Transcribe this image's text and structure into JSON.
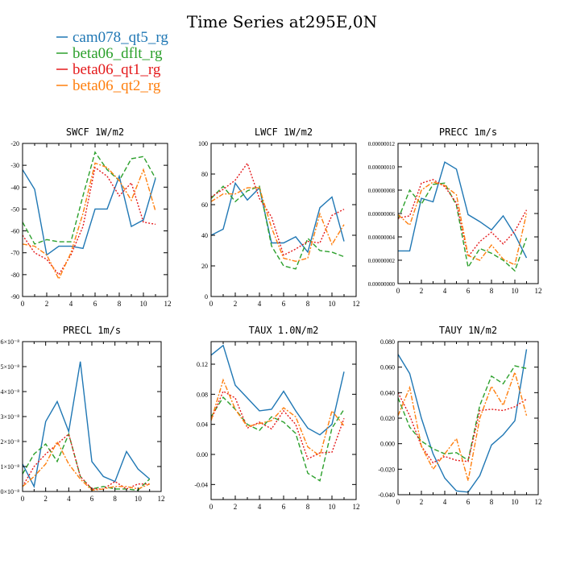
{
  "figure": {
    "title": "Time Series at295E,0N"
  },
  "legend": [
    {
      "label": "cam078_qt5_rg",
      "color": "#1f77b4",
      "dash": "solid"
    },
    {
      "label": "beta06_dflt_rg",
      "color": "#2ca02c",
      "dash": "dash"
    },
    {
      "label": "beta06_qt1_rg",
      "color": "#e41a1c",
      "dash": "dot"
    },
    {
      "label": "beta06_qt2_rg",
      "color": "#ff7f0e",
      "dash": "dashdot"
    }
  ],
  "chart_data": [
    {
      "type": "line",
      "title": "SWCF   1W/m2",
      "xlabel": "",
      "ylabel": "",
      "xlim": [
        0,
        12
      ],
      "ylim": [
        -90,
        -20
      ],
      "xticks": [
        "0",
        "2",
        "4",
        "6",
        "8",
        "10",
        "12"
      ],
      "yticks": [
        "-90",
        "-80",
        "-70",
        "-60",
        "-50",
        "-40",
        "-30",
        "-20"
      ],
      "yticks_values": [
        -90,
        -80,
        -70,
        -60,
        -50,
        -40,
        -30,
        -20
      ],
      "x": [
        0,
        1,
        2,
        3,
        4,
        5,
        6,
        7,
        8,
        9,
        10,
        11
      ],
      "series": [
        {
          "name": "cam078_qt5_rg",
          "values": [
            -32,
            -41,
            -71,
            -67,
            -67,
            -68,
            -50,
            -50,
            -35,
            -58,
            -55,
            -36
          ]
        },
        {
          "name": "beta06_dflt_rg",
          "values": [
            -56,
            -66,
            -64,
            -65,
            -65,
            -44,
            -24,
            -32,
            -37,
            -27,
            -26,
            -36
          ]
        },
        {
          "name": "beta06_qt1_rg",
          "values": [
            -62,
            -70,
            -73,
            -80,
            -71,
            -58,
            -31,
            -35,
            -44,
            -38,
            -56,
            -57
          ]
        },
        {
          "name": "beta06_qt2_rg",
          "values": [
            -66,
            -67,
            -71,
            -82,
            -70,
            -52,
            -29,
            -31,
            -37,
            -46,
            -32,
            -51
          ]
        }
      ]
    },
    {
      "type": "line",
      "title": "LWCF   1W/m2",
      "xlabel": "",
      "ylabel": "",
      "xlim": [
        0,
        12
      ],
      "ylim": [
        0,
        100
      ],
      "xticks": [
        "0",
        "2",
        "4",
        "6",
        "8",
        "10",
        "12"
      ],
      "yticks": [
        "0",
        "20",
        "40",
        "60",
        "80",
        "100"
      ],
      "yticks_values": [
        0,
        20,
        40,
        60,
        80,
        100
      ],
      "x": [
        0,
        1,
        2,
        3,
        4,
        5,
        6,
        7,
        8,
        9,
        10,
        11
      ],
      "series": [
        {
          "name": "cam078_qt5_rg",
          "values": [
            40,
            44,
            74,
            63,
            71,
            35,
            35,
            39,
            29,
            58,
            65,
            36
          ]
        },
        {
          "name": "beta06_dflt_rg",
          "values": [
            64,
            72,
            62,
            69,
            72,
            33,
            20,
            18,
            38,
            30,
            29,
            26
          ]
        },
        {
          "name": "beta06_qt1_rg",
          "values": [
            65,
            70,
            76,
            87,
            64,
            52,
            27,
            31,
            36,
            35,
            53,
            57
          ]
        },
        {
          "name": "beta06_qt2_rg",
          "values": [
            62,
            67,
            67,
            71,
            71,
            45,
            25,
            23,
            25,
            54,
            34,
            47
          ]
        }
      ]
    },
    {
      "type": "line",
      "title": "PRECC   1m/s",
      "xlabel": "",
      "ylabel": "",
      "xlim": [
        0,
        12
      ],
      "ylim": [
        0,
        1.2e-07
      ],
      "xticks": [
        "0",
        "2",
        "4",
        "6",
        "8",
        "10",
        "12"
      ],
      "yticks": [
        "0.00000000",
        "0.00000002",
        "0.00000004",
        "0.00000006",
        "0.00000008",
        "0.00000010",
        "0.00000012"
      ],
      "yticks_values": [
        0,
        2e-08,
        4e-08,
        6e-08,
        8e-08,
        1e-07,
        1.2e-07
      ],
      "x": [
        0,
        1,
        2,
        3,
        4,
        5,
        6,
        7,
        8,
        9,
        10,
        11
      ],
      "series": [
        {
          "name": "cam078_qt5_rg",
          "values": [
            2.8e-08,
            2.8e-08,
            7.3e-08,
            7e-08,
            1.04e-07,
            9.8e-08,
            5.9e-08,
            5.3e-08,
            4.6e-08,
            5.8e-08,
            4.2e-08,
            2.2e-08
          ]
        },
        {
          "name": "beta06_dflt_rg",
          "values": [
            5.5e-08,
            8e-08,
            6.8e-08,
            8.5e-08,
            8.6e-08,
            6.7e-08,
            1.4e-08,
            3e-08,
            2.6e-08,
            2e-08,
            1.1e-08,
            3.9e-08
          ]
        },
        {
          "name": "beta06_qt1_rg",
          "values": [
            5.6e-08,
            5.8e-08,
            8.6e-08,
            8.9e-08,
            8.3e-08,
            6.9e-08,
            2.3e-08,
            3.6e-08,
            4.4e-08,
            3.4e-08,
            4.5e-08,
            6.3e-08
          ]
        },
        {
          "name": "beta06_qt2_rg",
          "values": [
            5.9e-08,
            5e-08,
            8e-08,
            8.7e-08,
            8.4e-08,
            7.6e-08,
            2.4e-08,
            2e-08,
            3.3e-08,
            2.1e-08,
            1.6e-08,
            6e-08
          ]
        }
      ]
    },
    {
      "type": "line",
      "title": "PRECL   1m/s",
      "xlabel": "",
      "ylabel": "",
      "xlim": [
        0,
        12
      ],
      "ylim": [
        0,
        6
      ],
      "xticks": [
        "0",
        "2",
        "4",
        "6",
        "8",
        "10",
        "12"
      ],
      "yticks": [
        "0×10⁻⁸",
        "1×10⁻⁸",
        "2×10⁻⁸",
        "3×10⁻⁸",
        "4×10⁻⁸",
        "5×10⁻⁸",
        "6×10⁻⁸"
      ],
      "yticks_values": [
        0,
        1,
        2,
        3,
        4,
        5,
        6
      ],
      "x": [
        0,
        1,
        2,
        3,
        4,
        5,
        6,
        7,
        8,
        9,
        10,
        11
      ],
      "series": [
        {
          "name": "cam078_qt5_rg",
          "values": [
            1.1,
            0.2,
            2.8,
            3.6,
            2.4,
            5.2,
            1.2,
            0.6,
            0.4,
            1.6,
            0.9,
            0.5
          ]
        },
        {
          "name": "beta06_dflt_rg",
          "values": [
            0.7,
            1.5,
            1.9,
            1.2,
            2.3,
            0.6,
            0.1,
            0.2,
            0.1,
            0.1,
            0.05,
            0.5
          ]
        },
        {
          "name": "beta06_qt1_rg",
          "values": [
            0.2,
            1.0,
            1.5,
            1.9,
            2.3,
            0.6,
            0.1,
            0.1,
            0.4,
            0.1,
            0.3,
            0.3
          ]
        },
        {
          "name": "beta06_qt2_rg",
          "values": [
            0.2,
            0.6,
            1.1,
            2.0,
            1.1,
            0.5,
            0.05,
            0.1,
            0.2,
            0.2,
            0.1,
            0.3
          ]
        }
      ]
    },
    {
      "type": "line",
      "title": "TAUX   1.0N/m2",
      "xlabel": "",
      "ylabel": "",
      "xlim": [
        0,
        12
      ],
      "ylim": [
        -0.06,
        0.15
      ],
      "xticks": [
        "0",
        "2",
        "4",
        "6",
        "8",
        "10",
        "12"
      ],
      "yticks": [
        "-0.04",
        "0.00",
        "0.04",
        "0.08",
        "0.12"
      ],
      "yticks_values": [
        -0.04,
        0.0,
        0.04,
        0.08,
        0.12
      ],
      "x": [
        0,
        1,
        2,
        3,
        4,
        5,
        6,
        7,
        8,
        9,
        10,
        11
      ],
      "series": [
        {
          "name": "cam078_qt5_rg",
          "values": [
            0.132,
            0.145,
            0.092,
            0.075,
            0.058,
            0.06,
            0.084,
            0.058,
            0.035,
            0.026,
            0.04,
            0.11
          ]
        },
        {
          "name": "beta06_dflt_rg",
          "values": [
            0.05,
            0.076,
            0.06,
            0.04,
            0.032,
            0.05,
            0.043,
            0.028,
            -0.025,
            -0.035,
            0.035,
            0.06
          ]
        },
        {
          "name": "beta06_qt1_rg",
          "values": [
            0.046,
            0.084,
            0.075,
            0.035,
            0.043,
            0.034,
            0.058,
            0.04,
            -0.006,
            0.002,
            0.003,
            0.048
          ]
        },
        {
          "name": "beta06_qt2_rg",
          "values": [
            0.045,
            0.099,
            0.06,
            0.037,
            0.041,
            0.045,
            0.062,
            0.05,
            0.01,
            -0.002,
            0.058,
            0.038
          ]
        }
      ]
    },
    {
      "type": "line",
      "title": "TAUY   1N/m2",
      "xlabel": "",
      "ylabel": "",
      "xlim": [
        0,
        12
      ],
      "ylim": [
        -0.04,
        0.08
      ],
      "xticks": [
        "0",
        "2",
        "4",
        "6",
        "8",
        "10",
        "12"
      ],
      "yticks": [
        "-0.040",
        "-0.020",
        "0.000",
        "0.020",
        "0.040",
        "0.060",
        "0.080"
      ],
      "yticks_values": [
        -0.04,
        -0.02,
        0.0,
        0.02,
        0.04,
        0.06,
        0.08
      ],
      "x": [
        0,
        1,
        2,
        3,
        4,
        5,
        6,
        7,
        8,
        9,
        10,
        11
      ],
      "series": [
        {
          "name": "cam078_qt5_rg",
          "values": [
            0.07,
            0.055,
            0.02,
            -0.008,
            -0.027,
            -0.037,
            -0.038,
            -0.025,
            -0.001,
            0.007,
            0.018,
            0.074
          ]
        },
        {
          "name": "beta06_dflt_rg",
          "values": [
            0.036,
            0.013,
            0.002,
            -0.004,
            -0.008,
            -0.007,
            -0.013,
            0.03,
            0.053,
            0.047,
            0.061,
            0.059
          ]
        },
        {
          "name": "beta06_qt1_rg",
          "values": [
            0.04,
            0.022,
            -0.002,
            -0.015,
            -0.01,
            -0.013,
            -0.014,
            0.026,
            0.027,
            0.026,
            0.029,
            0.035
          ]
        },
        {
          "name": "beta06_qt2_rg",
          "values": [
            0.022,
            0.044,
            -0.002,
            -0.02,
            -0.008,
            0.004,
            -0.029,
            0.02,
            0.045,
            0.03,
            0.056,
            0.022
          ]
        }
      ]
    }
  ]
}
